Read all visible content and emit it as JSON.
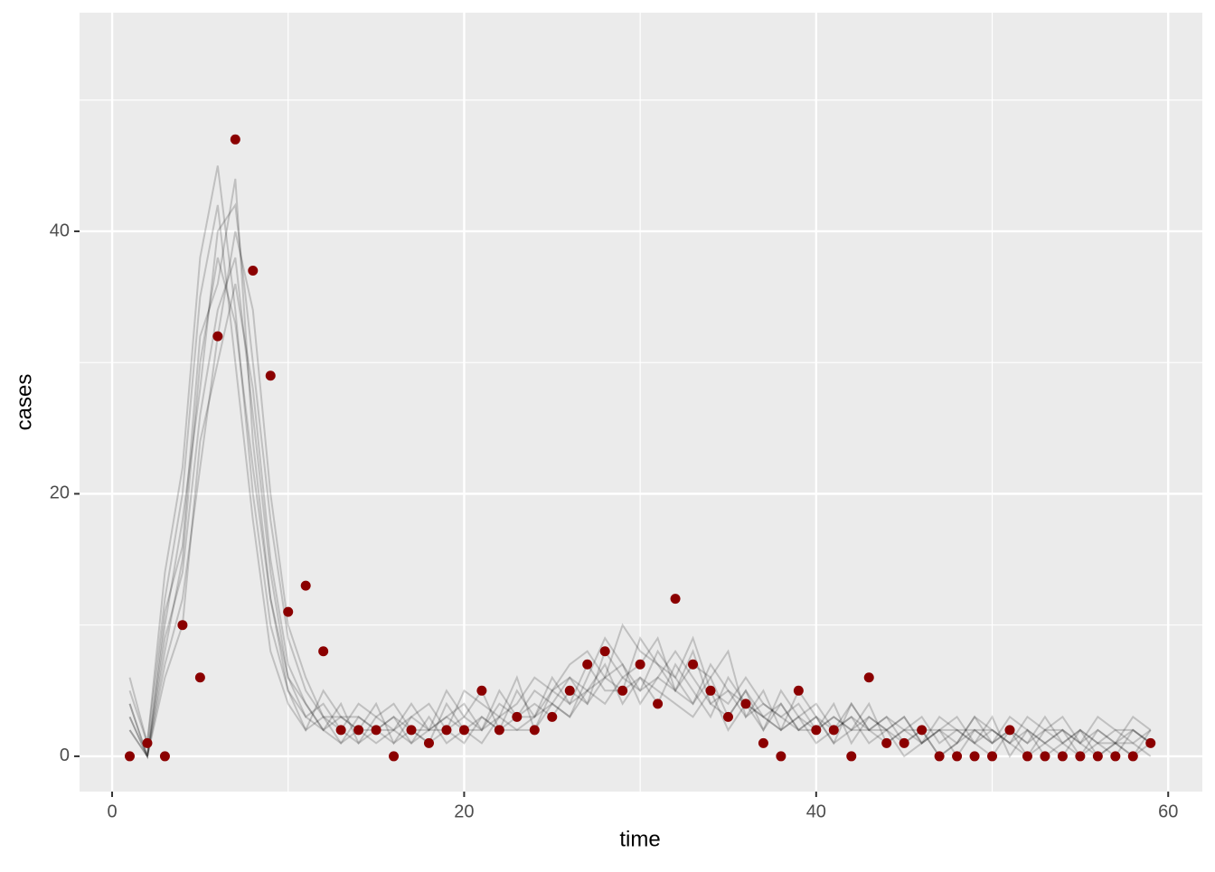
{
  "chart_data": {
    "type": "line-and-points",
    "x_label": "time",
    "y_label": "cases",
    "x": [
      1,
      2,
      3,
      4,
      5,
      6,
      7,
      8,
      9,
      10,
      11,
      12,
      13,
      14,
      15,
      16,
      17,
      18,
      19,
      20,
      21,
      22,
      23,
      24,
      25,
      26,
      27,
      28,
      29,
      30,
      31,
      32,
      33,
      34,
      35,
      36,
      37,
      38,
      39,
      40,
      41,
      42,
      43,
      44,
      45,
      46,
      47,
      48,
      49,
      50,
      51,
      52,
      53,
      54,
      55,
      56,
      57,
      58,
      59
    ],
    "observed": [
      0,
      1,
      0,
      10,
      6,
      32,
      47,
      37,
      29,
      11,
      13,
      8,
      2,
      2,
      2,
      0,
      2,
      1,
      2,
      2,
      5,
      2,
      3,
      2,
      3,
      5,
      7,
      8,
      5,
      7,
      4,
      12,
      7,
      5,
      3,
      4,
      1,
      0,
      5,
      2,
      2,
      0,
      6,
      1,
      1,
      2,
      0,
      0,
      0,
      0,
      2,
      0,
      0,
      0,
      0,
      0,
      0,
      0,
      1
    ],
    "observed_color": "#8b0000",
    "simulation_color": "#000000",
    "simulations": [
      [
        3,
        0,
        8,
        15,
        30,
        38,
        33,
        22,
        12,
        5,
        3,
        2,
        4,
        1,
        2,
        3,
        2,
        1,
        4,
        2,
        3,
        2,
        5,
        3,
        4,
        6,
        5,
        7,
        4,
        6,
        5,
        4,
        3,
        5,
        2,
        4,
        3,
        2,
        3,
        1,
        2,
        3,
        2,
        1,
        2,
        2,
        0,
        1,
        3,
        1,
        2,
        0,
        1,
        2,
        1,
        0,
        1,
        2,
        1
      ],
      [
        5,
        1,
        12,
        20,
        35,
        42,
        30,
        18,
        8,
        4,
        2,
        5,
        3,
        2,
        4,
        1,
        3,
        2,
        2,
        5,
        4,
        3,
        6,
        2,
        5,
        7,
        8,
        6,
        5,
        9,
        7,
        5,
        4,
        6,
        3,
        5,
        2,
        4,
        2,
        3,
        1,
        4,
        2,
        3,
        2,
        1,
        3,
        2,
        1,
        2,
        1,
        3,
        2,
        1,
        2,
        1,
        0,
        2,
        1
      ],
      [
        2,
        0,
        6,
        10,
        24,
        30,
        36,
        28,
        15,
        7,
        4,
        2,
        1,
        3,
        2,
        2,
        1,
        3,
        1,
        2,
        2,
        4,
        3,
        5,
        4,
        3,
        6,
        9,
        7,
        5,
        6,
        8,
        6,
        4,
        5,
        3,
        4,
        3,
        2,
        2,
        4,
        1,
        3,
        2,
        0,
        1,
        2,
        2,
        1,
        3,
        0,
        2,
        1,
        0,
        2,
        1,
        1,
        0,
        2
      ],
      [
        4,
        0,
        10,
        18,
        28,
        40,
        42,
        30,
        18,
        9,
        5,
        3,
        2,
        4,
        3,
        2,
        4,
        2,
        5,
        3,
        2,
        3,
        4,
        6,
        5,
        4,
        5,
        6,
        10,
        8,
        7,
        6,
        9,
        5,
        4,
        6,
        4,
        3,
        4,
        2,
        3,
        2,
        4,
        1,
        2,
        3,
        1,
        2,
        2,
        1,
        2,
        1,
        3,
        1,
        0,
        2,
        1,
        1,
        0
      ],
      [
        3,
        0,
        9,
        14,
        26,
        34,
        38,
        26,
        14,
        6,
        3,
        4,
        2,
        1,
        3,
        4,
        2,
        1,
        2,
        3,
        5,
        2,
        3,
        4,
        3,
        5,
        4,
        8,
        6,
        7,
        9,
        5,
        7,
        6,
        8,
        3,
        5,
        2,
        3,
        4,
        2,
        3,
        1,
        2,
        3,
        1,
        2,
        0,
        2,
        1,
        3,
        2,
        1,
        2,
        0,
        1,
        2,
        1,
        2
      ],
      [
        6,
        1,
        14,
        22,
        38,
        45,
        34,
        20,
        10,
        5,
        2,
        3,
        3,
        2,
        1,
        2,
        3,
        4,
        2,
        1,
        3,
        2,
        2,
        3,
        6,
        4,
        7,
        5,
        5,
        6,
        4,
        7,
        5,
        3,
        6,
        4,
        2,
        5,
        3,
        2,
        3,
        2,
        2,
        3,
        1,
        2,
        2,
        1,
        3,
        2,
        1,
        0,
        2,
        3,
        1,
        2,
        1,
        3,
        2
      ],
      [
        2,
        0,
        7,
        12,
        22,
        32,
        40,
        34,
        20,
        10,
        6,
        3,
        1,
        2,
        2,
        3,
        1,
        2,
        3,
        2,
        1,
        3,
        2,
        2,
        4,
        3,
        5,
        4,
        6,
        5,
        8,
        6,
        4,
        7,
        5,
        4,
        3,
        4,
        2,
        3,
        1,
        2,
        3,
        2,
        1,
        2,
        0,
        1,
        2,
        2,
        1,
        2,
        0,
        1,
        2,
        0,
        1,
        0,
        1
      ],
      [
        4,
        0,
        11,
        16,
        32,
        36,
        44,
        24,
        12,
        6,
        4,
        2,
        3,
        3,
        2,
        1,
        2,
        2,
        3,
        4,
        2,
        5,
        3,
        3,
        5,
        6,
        4,
        6,
        7,
        4,
        6,
        5,
        8,
        4,
        3,
        5,
        3,
        2,
        5,
        3,
        2,
        4,
        2,
        2,
        3,
        1,
        2,
        3,
        1,
        0,
        2,
        1,
        2,
        2,
        1,
        3,
        2,
        2,
        1
      ]
    ],
    "xlim": [
      -1.85,
      61.94
    ],
    "ylim": [
      -2.69,
      56.66
    ],
    "xticks": [
      0,
      20,
      40,
      60
    ],
    "yticks": [
      0,
      20,
      40
    ],
    "xminor": [
      10,
      30,
      50
    ],
    "yminor": [
      10,
      30,
      50
    ],
    "grid": true
  }
}
